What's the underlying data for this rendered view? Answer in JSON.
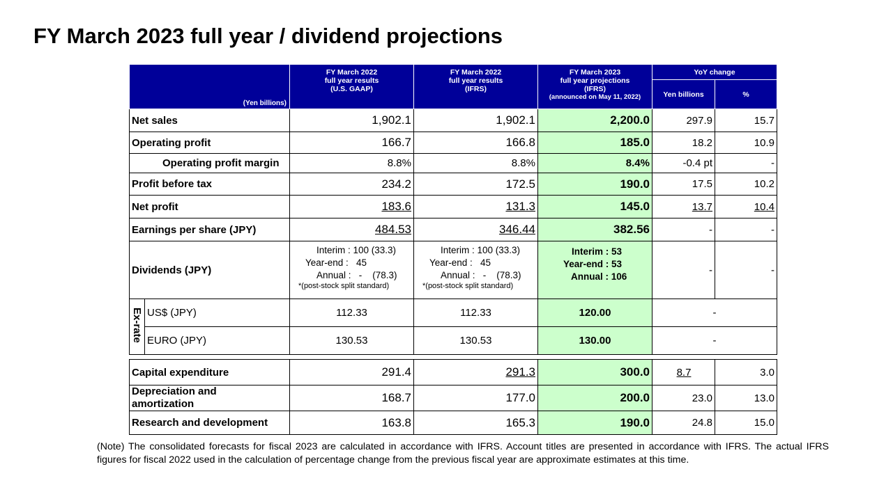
{
  "title": "FY March 2023 full year / dividend projections",
  "header": {
    "unit": "(Yen billions)",
    "col1": [
      "FY March 2022",
      "full year results",
      "(U.S. GAAP)"
    ],
    "col2": [
      "FY March 2022",
      "full year results",
      "(IFRS)"
    ],
    "col3": [
      "FY March 2023",
      "full year projections",
      "(IFRS)",
      "(announced on May 11, 2022)"
    ],
    "yoy": "YoY change",
    "yoy_yen": "Yen billions",
    "yoy_pct": "%"
  },
  "rows": {
    "net_sales": {
      "label": "Net sales",
      "gaap": "1,902.1",
      "ifrs": "1,902.1",
      "proj": "2,200.0",
      "yoy_yen": "297.9",
      "yoy_pct": "15.7"
    },
    "op_profit": {
      "label": "Operating profit",
      "gaap": "166.7",
      "ifrs": "166.8",
      "proj": "185.0",
      "yoy_yen": "18.2",
      "yoy_pct": "10.9"
    },
    "op_margin": {
      "label": "Operating profit margin",
      "gaap": "8.8%",
      "ifrs": "8.8%",
      "proj": "8.4%",
      "yoy_yen": "-0.4 pt",
      "yoy_pct": "-"
    },
    "pbt": {
      "label": "Profit before tax",
      "gaap": "234.2",
      "ifrs": "172.5",
      "proj": "190.0",
      "yoy_yen": "17.5",
      "yoy_pct": "10.2"
    },
    "net_profit": {
      "label": "Net profit",
      "gaap": "183.6",
      "ifrs": "131.3",
      "proj": "145.0",
      "yoy_yen": "13.7",
      "yoy_pct": "10.4"
    },
    "eps": {
      "label": "Earnings per share (JPY)",
      "gaap": "484.53",
      "ifrs": "346.44",
      "proj": "382.56",
      "yoy_yen": "-",
      "yoy_pct": "-"
    }
  },
  "dividends": {
    "label": "Dividends (JPY)",
    "gaap": {
      "interim": "Interim : 100 (33.3)",
      "yearend": "Year-end :   45",
      "annual": "Annual :   -    (78.3)",
      "note": "*(post-stock split standard)"
    },
    "ifrs": {
      "interim": "Interim : 100 (33.3)",
      "yearend": "Year-end :   45",
      "annual": "Annual :   -    (78.3)",
      "note": "*(post-stock split standard)"
    },
    "proj": {
      "interim": "Interim : 53",
      "yearend": "Year-end : 53",
      "annual": "Annual : 106"
    },
    "yoy_yen": "-",
    "yoy_pct": "-"
  },
  "exrate": {
    "side_label": "Ex-rate",
    "usd": {
      "label": "US$ (JPY)",
      "gaap": "112.33",
      "ifrs": "112.33",
      "proj": "120.00",
      "yoy": "-"
    },
    "eur": {
      "label": "EURO (JPY)",
      "gaap": "130.53",
      "ifrs": "130.53",
      "proj": "130.00",
      "yoy": "-"
    }
  },
  "capex": {
    "capital": {
      "label": "Capital expenditure",
      "gaap": "291.4",
      "ifrs": "291.3",
      "proj": "300.0",
      "yoy_yen": "8.7",
      "yoy_pct": "3.0"
    },
    "depreciation": {
      "label_line1": "Depreciation and",
      "label_line2": "amortization",
      "gaap": "168.7",
      "ifrs": "177.0",
      "proj": "200.0",
      "yoy_yen": "23.0",
      "yoy_pct": "13.0"
    },
    "rnd": {
      "label": "Research and development",
      "gaap": "163.8",
      "ifrs": "165.3",
      "proj": "190.0",
      "yoy_yen": "24.8",
      "yoy_pct": "15.0"
    }
  },
  "note": "(Note) The consolidated forecasts for fiscal 2023 are calculated in accordance with IFRS. Account titles are presented in accordance with IFRS. The actual IFRS figures for fiscal 2022 used in the calculation of percentage change from the previous fiscal year are approximate estimates at this time."
}
